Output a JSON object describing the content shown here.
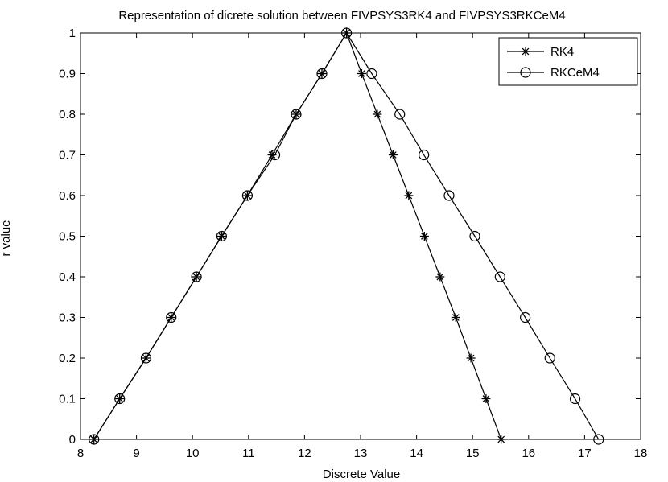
{
  "chart_data": {
    "type": "line",
    "title": "Representation of dicrete solution between FIVPSYS3RK4 and FIVPSYS3RKCeM4",
    "xlabel": "Discrete Value",
    "ylabel": "r value",
    "xlim": [
      8,
      18
    ],
    "ylim": [
      0,
      1
    ],
    "xticks": [
      "8",
      "9",
      "10",
      "11",
      "12",
      "13",
      "14",
      "15",
      "16",
      "17",
      "18"
    ],
    "yticks": [
      "0",
      "0.1",
      "0.2",
      "0.3",
      "0.4",
      "0.5",
      "0.6",
      "0.7",
      "0.8",
      "0.9",
      "1"
    ],
    "grid": false,
    "legend_position": "top-right",
    "series": [
      {
        "name": "RK4",
        "marker": "asterisk",
        "color": "#000000",
        "points": [
          [
            8.24,
            0
          ],
          [
            8.7,
            0.1
          ],
          [
            9.17,
            0.2
          ],
          [
            9.62,
            0.3
          ],
          [
            10.07,
            0.4
          ],
          [
            10.52,
            0.5
          ],
          [
            10.98,
            0.6
          ],
          [
            11.42,
            0.7
          ],
          [
            11.85,
            0.8
          ],
          [
            12.31,
            0.9
          ],
          [
            12.75,
            1
          ],
          [
            13.02,
            0.9
          ],
          [
            13.3,
            0.8
          ],
          [
            13.58,
            0.7
          ],
          [
            13.86,
            0.6
          ],
          [
            14.14,
            0.5
          ],
          [
            14.42,
            0.4
          ],
          [
            14.7,
            0.3
          ],
          [
            14.97,
            0.2
          ],
          [
            15.24,
            0.1
          ],
          [
            15.51,
            0
          ]
        ]
      },
      {
        "name": "RKCeM4",
        "marker": "circle",
        "color": "#000000",
        "points": [
          [
            8.24,
            0
          ],
          [
            8.7,
            0.1
          ],
          [
            9.17,
            0.2
          ],
          [
            9.62,
            0.3
          ],
          [
            10.07,
            0.4
          ],
          [
            10.52,
            0.5
          ],
          [
            10.98,
            0.6
          ],
          [
            11.47,
            0.7
          ],
          [
            11.85,
            0.8
          ],
          [
            12.31,
            0.9
          ],
          [
            12.75,
            1
          ],
          [
            13.2,
            0.9
          ],
          [
            13.7,
            0.8
          ],
          [
            14.13,
            0.7
          ],
          [
            14.58,
            0.6
          ],
          [
            15.04,
            0.5
          ],
          [
            15.49,
            0.4
          ],
          [
            15.94,
            0.3
          ],
          [
            16.38,
            0.2
          ],
          [
            16.83,
            0.1
          ],
          [
            17.25,
            0
          ]
        ]
      }
    ]
  }
}
